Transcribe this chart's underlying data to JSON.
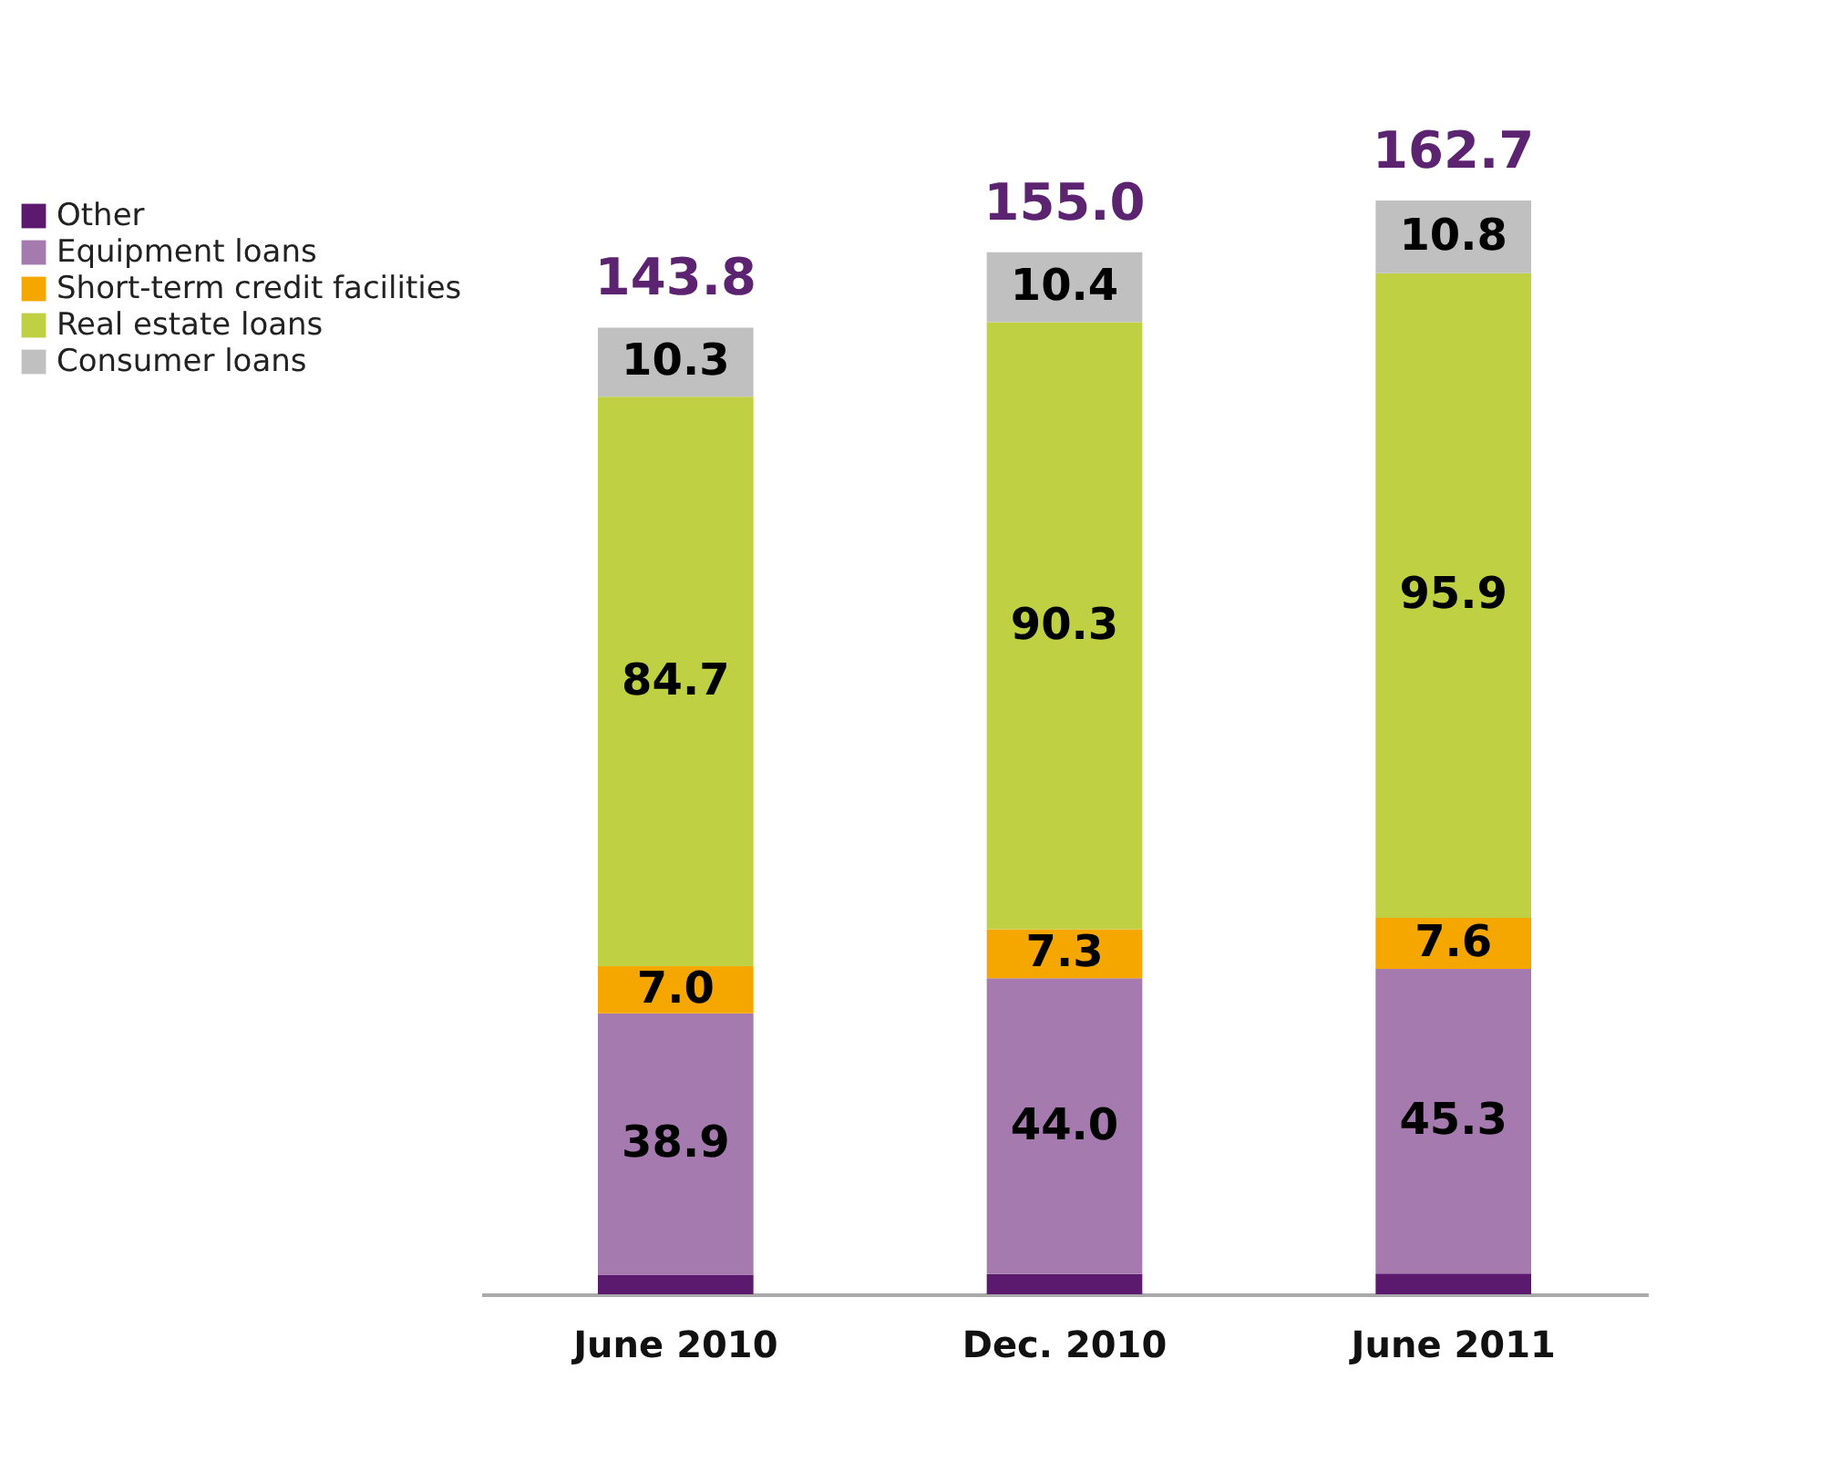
{
  "chart_data": {
    "type": "bar",
    "stacked": true,
    "categories": [
      "June 2010",
      "Dec. 2010",
      "June 2011"
    ],
    "series": [
      {
        "name": "Other",
        "color": "#5c1a6e",
        "values": [
          2.9,
          3.0,
          3.1
        ],
        "value_labels": [
          null,
          null,
          null
        ]
      },
      {
        "name": "Equipment loans",
        "color": "#a57aae",
        "values": [
          38.9,
          44.0,
          45.3
        ],
        "value_labels": [
          "38.9",
          "44.0",
          "45.3"
        ]
      },
      {
        "name": "Short-term credit facilities",
        "color": "#f5a700",
        "values": [
          7.0,
          7.3,
          7.6
        ],
        "value_labels": [
          "7.0",
          "7.3",
          "7.6"
        ]
      },
      {
        "name": "Real estate loans",
        "color": "#bfd043",
        "values": [
          84.7,
          90.3,
          95.9
        ],
        "value_labels": [
          "84.7",
          "90.3",
          "95.9"
        ]
      },
      {
        "name": "Consumer loans",
        "color": "#c0c0c0",
        "values": [
          10.3,
          10.4,
          10.8
        ],
        "value_labels": [
          "10.3",
          "10.4",
          "10.8"
        ]
      }
    ],
    "totals": [
      "143.8",
      "155.0",
      "162.7"
    ],
    "legend": "left",
    "grid": false,
    "tick_labels": "x"
  }
}
